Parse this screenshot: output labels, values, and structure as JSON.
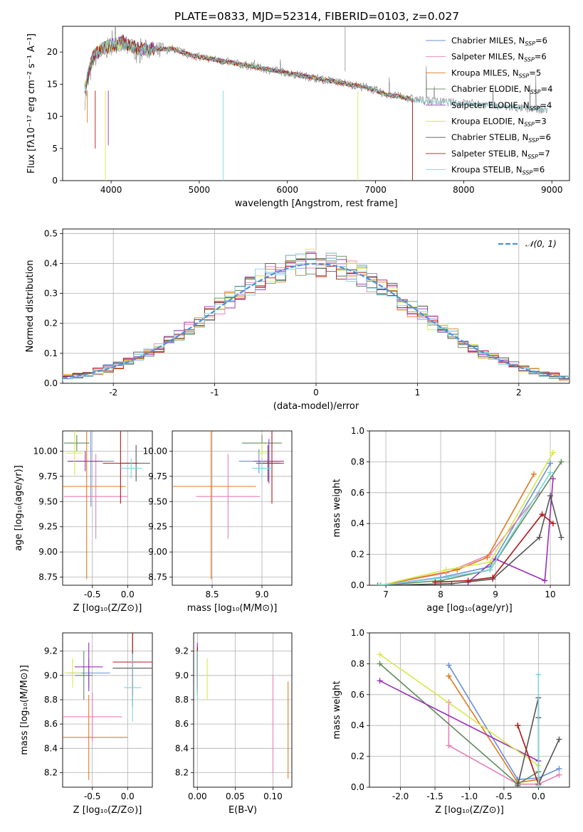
{
  "figure": {
    "title": "PLATE=0833, MJD=52314, FIBERID=0103, z=0.027"
  },
  "colors": [
    "#6a8fd8",
    "#e87fb8",
    "#e07b20",
    "#5e8c5a",
    "#9b30b8",
    "#d8e84a",
    "#555555",
    "#b01818",
    "#7ad6dc"
  ],
  "legend_ssp": [
    {
      "label": "Chabrier MILES, N",
      "sub": "SSP",
      "tail": "=6"
    },
    {
      "label": "Salpeter MILES, N",
      "sub": "SSP",
      "tail": "=6"
    },
    {
      "label": "Kroupa MILES, N",
      "sub": "SSP",
      "tail": "=5"
    },
    {
      "label": "Chabrier ELODIE, N",
      "sub": "SSP",
      "tail": "=4"
    },
    {
      "label": "Salpeter ELODIE, N",
      "sub": "SSP",
      "tail": "=4"
    },
    {
      "label": "Kroupa ELODIE, N",
      "sub": "SSP",
      "tail": "=3"
    },
    {
      "label": "Chabrier STELIB, N",
      "sub": "SSP",
      "tail": "=6"
    },
    {
      "label": "Salpeter STELIB, N",
      "sub": "SSP",
      "tail": "=7"
    },
    {
      "label": "Kroupa STELIB, N",
      "sub": "SSP",
      "tail": "=6"
    }
  ],
  "chart_data": [
    {
      "id": "spectrum",
      "type": "line",
      "xlabel": "wavelength [Angstrom, rest frame]",
      "ylabel": "Flux [fλ10⁻¹⁷ erg cm⁻² s⁻¹ A⁻¹]",
      "xlim": [
        3450,
        9200
      ],
      "ylim": [
        0,
        24
      ],
      "xticks": [
        4000,
        5000,
        6000,
        7000,
        8000,
        9000
      ],
      "yticks": [
        0,
        5,
        10,
        15,
        20
      ],
      "data_x": [
        3700,
        3800,
        3900,
        4000,
        4100,
        4200,
        4300,
        4400,
        4500,
        4700,
        4900,
        5100,
        5300,
        5500,
        5700,
        5900,
        6100,
        6300,
        6500,
        6700,
        6900,
        7100,
        7300,
        7500,
        7800,
        8100,
        8400,
        8700,
        8950
      ],
      "data_y": [
        12.5,
        19,
        20,
        21,
        21.5,
        20.5,
        19.5,
        20.5,
        20,
        20.5,
        19.5,
        19,
        18.5,
        18,
        17.5,
        17,
        16.5,
        16,
        15.5,
        15,
        14.5,
        13.5,
        13,
        12.5,
        12.2,
        12,
        11.5,
        11.2,
        11
      ],
      "model_x": [
        3700,
        3800,
        3900,
        4000,
        4150,
        4300,
        4500,
        4700,
        4900,
        5100,
        5300,
        5500,
        5700,
        5900,
        6100,
        6300,
        6500,
        6700,
        6900,
        7100,
        7300,
        7400
      ],
      "model_y": [
        14.5,
        19.5,
        20.5,
        21,
        21.5,
        20.5,
        20.5,
        20.5,
        19.5,
        19,
        18.5,
        18,
        17.5,
        17,
        16.5,
        16,
        15.5,
        15,
        14.5,
        13.5,
        13,
        12.8
      ],
      "kroupa_stelib_tail_x": [
        7400,
        7700,
        8000,
        8300,
        8600,
        8950
      ],
      "kroupa_stelib_tail_y": [
        12.5,
        12.2,
        12,
        11.7,
        11.4,
        11
      ]
    },
    {
      "id": "residuals",
      "type": "step",
      "xlabel": "(data-model)/error",
      "ylabel": "Normed distribution",
      "xlim": [
        -2.5,
        2.5
      ],
      "ylim": [
        0,
        0.515
      ],
      "xticks": [
        -2,
        -1,
        0,
        1,
        2
      ],
      "yticks": [
        0.0,
        0.1,
        0.2,
        0.3,
        0.4,
        0.5
      ],
      "legend": "𝒩(0, 1)"
    },
    {
      "id": "age_vs_Z",
      "type": "errorbar",
      "xlabel": "Z [log₁₀(Z/Z⊙)]",
      "ylabel": "age [log₁₀(age/yr)]",
      "xlim": [
        -0.92,
        0.35
      ],
      "ylim": [
        8.67,
        10.2
      ],
      "xticks": [
        -0.5,
        0.0
      ],
      "yticks": [
        8.75,
        9.0,
        9.25,
        9.5,
        9.75,
        10.0
      ],
      "points": [
        {
          "x": -0.52,
          "y": 9.9,
          "xerr": 0.33,
          "yerr": 0.45
        },
        {
          "x": -0.45,
          "y": 9.55,
          "xerr": 0.45,
          "yerr": 0.42
        },
        {
          "x": -0.58,
          "y": 9.65,
          "xerr": 0.55,
          "yerr": 0.92
        },
        {
          "x": -0.72,
          "y": 10.08,
          "xerr": 0.18,
          "yerr": 0.08
        },
        {
          "x": -0.6,
          "y": 9.9,
          "xerr": 0.25,
          "yerr": 0.1
        },
        {
          "x": -0.75,
          "y": 9.98,
          "xerr": 0.12,
          "yerr": 0.22
        },
        {
          "x": 0.12,
          "y": 9.88,
          "xerr": 0.2,
          "yerr": 0.18
        },
        {
          "x": -0.1,
          "y": 9.88,
          "xerr": 0.25,
          "yerr": 0.4
        },
        {
          "x": 0.05,
          "y": 9.83,
          "xerr": 0.15,
          "yerr": 0.1
        }
      ]
    },
    {
      "id": "age_vs_mass",
      "type": "errorbar",
      "xlabel": "mass [log₁₀(M/M⊙)]",
      "ylabel": "",
      "xlim": [
        8.1,
        9.3
      ],
      "ylim": [
        8.67,
        10.2
      ],
      "xticks": [
        8.5,
        9.0
      ],
      "yticks": [
        8.75,
        9.0,
        9.25,
        9.5,
        9.75,
        10.0
      ],
      "points": [
        {
          "x": 8.97,
          "y": 9.9,
          "xerr": 0.2,
          "yerr": 0.12
        },
        {
          "x": 8.66,
          "y": 9.55,
          "xerr": 0.32,
          "yerr": 0.42
        },
        {
          "x": 8.49,
          "y": 9.65,
          "xerr": 0.45,
          "yerr": 0.92
        },
        {
          "x": 9.0,
          "y": 10.08,
          "xerr": 0.2,
          "yerr": 0.08
        },
        {
          "x": 9.07,
          "y": 9.9,
          "xerr": 0.15,
          "yerr": 0.22
        },
        {
          "x": 9.0,
          "y": 9.98,
          "xerr": 0.05,
          "yerr": 0.1
        },
        {
          "x": 9.06,
          "y": 9.88,
          "xerr": 0.12,
          "yerr": 0.18
        },
        {
          "x": 9.1,
          "y": 9.88,
          "xerr": 0.12,
          "yerr": 0.4
        },
        {
          "x": 9.0,
          "y": 9.83,
          "xerr": 0.1,
          "yerr": 0.1
        }
      ]
    },
    {
      "id": "weight_vs_age",
      "type": "line",
      "xlabel": "age [log₁₀(age/yr)]",
      "ylabel": "mass weight",
      "xlim": [
        6.7,
        10.35
      ],
      "ylim": [
        0,
        1
      ],
      "xticks": [
        7,
        8,
        9,
        10
      ],
      "yticks": [
        0.0,
        0.2,
        0.4,
        0.6,
        0.8,
        1.0
      ],
      "series": [
        {
          "x": [
            6.9,
            8.0,
            8.9,
            10.0
          ],
          "y": [
            0.0,
            0.05,
            0.12,
            0.79
          ]
        },
        {
          "x": [
            6.9,
            8.1,
            8.9,
            9.8
          ],
          "y": [
            0.0,
            0.08,
            0.2,
            0.6
          ]
        },
        {
          "x": [
            6.9,
            8.3,
            8.85,
            9.7
          ],
          "y": [
            0.0,
            0.1,
            0.18,
            0.72
          ]
        },
        {
          "x": [
            6.85,
            8.0,
            8.9,
            10.2
          ],
          "y": [
            0.0,
            0.03,
            0.1,
            0.8
          ]
        },
        {
          "x": [
            8.5,
            9.0,
            9.9,
            10.05
          ],
          "y": [
            0.02,
            0.17,
            0.03,
            0.69
          ]
        },
        {
          "x": [
            6.9,
            8.1,
            8.9,
            10.05
          ],
          "y": [
            0.0,
            0.1,
            0.15,
            0.86
          ]
        },
        {
          "x": [
            6.9,
            8.2,
            8.95,
            9.8,
            10.0,
            10.2
          ],
          "y": [
            0.0,
            0.01,
            0.04,
            0.31,
            0.58,
            0.31
          ]
        },
        {
          "x": [
            7.9,
            8.5,
            8.95,
            9.85,
            10.05
          ],
          "y": [
            0.02,
            0.03,
            0.05,
            0.46,
            0.4
          ]
        },
        {
          "x": [
            6.9,
            8.1,
            8.9,
            10.0
          ],
          "y": [
            0.0,
            0.05,
            0.1,
            0.73
          ]
        }
      ]
    },
    {
      "id": "mass_vs_Z",
      "type": "errorbar",
      "xlabel": "Z [log₁₀(Z/Z⊙)]",
      "ylabel": "mass [log₁₀(M/M⊙)]",
      "xlim": [
        -0.92,
        0.35
      ],
      "ylim": [
        8.08,
        9.35
      ],
      "xticks": [
        -0.5,
        0.0
      ],
      "yticks": [
        8.2,
        8.4,
        8.6,
        8.8,
        9.0,
        9.2
      ],
      "points": [
        {
          "x": -0.55,
          "y": 9.02,
          "xerr": 0.3,
          "yerr": 0.12
        },
        {
          "x": -0.5,
          "y": 8.66,
          "xerr": 0.42,
          "yerr": 0.2
        },
        {
          "x": -0.55,
          "y": 8.49,
          "xerr": 0.55,
          "yerr": 0.35
        },
        {
          "x": -0.62,
          "y": 9.0,
          "xerr": 0.12,
          "yerr": 0.2
        },
        {
          "x": -0.55,
          "y": 9.07,
          "xerr": 0.2,
          "yerr": 0.2
        },
        {
          "x": -0.78,
          "y": 9.02,
          "xerr": 0.12,
          "yerr": 0.12
        },
        {
          "x": 0.07,
          "y": 9.06,
          "xerr": 0.28,
          "yerr": 0.32
        },
        {
          "x": 0.07,
          "y": 9.11,
          "xerr": 0.28,
          "yerr": 0.28
        },
        {
          "x": 0.07,
          "y": 8.9,
          "xerr": 0.12,
          "yerr": 0.28
        }
      ]
    },
    {
      "id": "mass_vs_EBV",
      "type": "errorbar",
      "xlabel": "E(B-V)",
      "ylabel": "",
      "xlim": [
        -0.005,
        0.125
      ],
      "ylim": [
        8.08,
        9.35
      ],
      "xticks": [
        0.0,
        0.05,
        0.1
      ],
      "yticks": [
        8.2,
        8.4,
        8.6,
        8.8,
        9.0,
        9.2
      ],
      "points": [
        {
          "x": 0.0,
          "y": 9.05,
          "xerr": 0,
          "yerr": 0.2
        },
        {
          "x": 0.1,
          "y": 8.6,
          "xerr": 0,
          "yerr": 0.4
        },
        {
          "x": 0.12,
          "y": 8.55,
          "xerr": 0,
          "yerr": 0.4
        },
        {
          "x": 0.0,
          "y": 9.08,
          "xerr": 0,
          "yerr": 0.15
        },
        {
          "x": 0.0,
          "y": 9.12,
          "xerr": 0,
          "yerr": 0.15
        },
        {
          "x": 0.013,
          "y": 8.97,
          "xerr": 0,
          "yerr": 0.17
        },
        {
          "x": 0.0,
          "y": 9.1,
          "xerr": 0,
          "yerr": 0.12
        },
        {
          "x": 0.0,
          "y": 9.05,
          "xerr": 0,
          "yerr": 0.18
        },
        {
          "x": 0.0,
          "y": 9.0,
          "xerr": 0,
          "yerr": 0.2
        }
      ]
    },
    {
      "id": "weight_vs_Z",
      "type": "line",
      "xlabel": "Z [log₁₀(Z/Z⊙)]",
      "ylabel": "mass weight",
      "xlim": [
        -2.45,
        0.45
      ],
      "ylim": [
        0,
        1
      ],
      "xticks": [
        -2.0,
        -1.5,
        -1.0,
        -0.5,
        0.0
      ],
      "yticks": [
        0.0,
        0.2,
        0.4,
        0.6,
        0.8,
        1.0
      ],
      "series": [
        {
          "x": [
            -1.3,
            -0.3,
            0.0,
            0.3
          ],
          "y": [
            0.79,
            0.05,
            0.06,
            0.12
          ]
        },
        {
          "x": [
            -1.3,
            -1.3,
            -0.3,
            0.0,
            0.3
          ],
          "y": [
            0.55,
            0.27,
            0.02,
            0.02,
            0.08
          ]
        },
        {
          "x": [
            -1.3,
            -0.3,
            0.0
          ],
          "y": [
            0.72,
            0.03,
            0.05
          ]
        },
        {
          "x": [
            -2.3,
            -0.3,
            0.0
          ],
          "y": [
            0.8,
            0.02,
            0.1
          ]
        },
        {
          "x": [
            -2.3,
            0.0
          ],
          "y": [
            0.69,
            0.17
          ]
        },
        {
          "x": [
            -2.3,
            0.0
          ],
          "y": [
            0.86,
            0.14
          ]
        },
        {
          "x": [
            -0.3,
            0.0,
            0.0,
            0.0,
            0.3
          ],
          "y": [
            0.01,
            0.58,
            0.45,
            0.02,
            0.31
          ]
        },
        {
          "x": [
            -0.3,
            0.0,
            -0.3
          ],
          "y": [
            0.4,
            0.02,
            0.4
          ]
        },
        {
          "x": [
            0.0,
            0.0
          ],
          "y": [
            0.73,
            0.01
          ]
        }
      ]
    }
  ]
}
